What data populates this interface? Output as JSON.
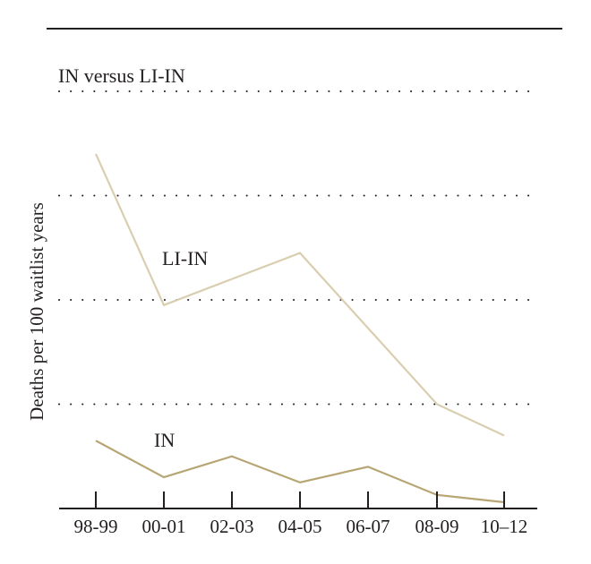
{
  "chart_data": {
    "type": "line",
    "title": "IN versus LI-IN",
    "ylabel": "Deaths per 100 waitlist years",
    "xlabel": "",
    "categories": [
      "98-99",
      "00-01",
      "02-03",
      "04-05",
      "06-07",
      "08-09",
      "10–12"
    ],
    "ylim": [
      0,
      40
    ],
    "grid": "horizontal-dotted",
    "series": [
      {
        "name": "LI-IN",
        "color": "#d9ceb0",
        "values": [
          34,
          19.5,
          null,
          24.5,
          null,
          10,
          7
        ]
      },
      {
        "name": "IN",
        "color": "#b7a574",
        "values": [
          6.5,
          3,
          5,
          2.5,
          4,
          1.3,
          0.6
        ]
      }
    ]
  }
}
